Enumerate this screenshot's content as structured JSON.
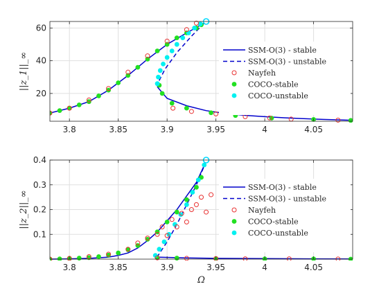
{
  "chart_data": [
    {
      "type": "line",
      "xlabel": "",
      "ylabel": "||z_1||_∞",
      "xlim": [
        3.78,
        4.09
      ],
      "ylim": [
        3,
        64
      ],
      "xticks": [
        3.8,
        3.85,
        3.9,
        3.95,
        4,
        4.05
      ],
      "xtick_labels": [
        "3.8",
        "3.85",
        "3.9",
        "3.95",
        "4",
        "4.05"
      ],
      "yticks": [
        20,
        40,
        60
      ],
      "ytick_labels": [
        "20",
        "40",
        "60"
      ],
      "grid": true,
      "legend_position": "right",
      "legend": [
        "SSM-O(3) - stable",
        "SSM-O(3) - unstable",
        "Nayfeh",
        "COCO-stable",
        "COCO-unstable"
      ],
      "series": [
        {
          "name": "SSM-O(3) - stable",
          "style": "solid",
          "color": "#0000cc",
          "x": [
            3.78,
            3.8,
            3.82,
            3.84,
            3.86,
            3.88,
            3.9,
            3.92,
            3.938
          ],
          "y": [
            8,
            11,
            15,
            22,
            31,
            41,
            50,
            57,
            63
          ]
        },
        {
          "name": "SSM-O(3) - stable",
          "style": "solid",
          "color": "#0000cc",
          "x": [
            3.89,
            3.9,
            3.92,
            3.94,
            3.96,
            3.98,
            4.0,
            4.02,
            4.04,
            4.06,
            4.09
          ],
          "y": [
            24,
            17,
            12.5,
            9.5,
            7.8,
            6.6,
            5.8,
            5.1,
            4.6,
            4.1,
            3.6
          ]
        },
        {
          "name": "SSM-O(3) - unstable",
          "style": "dashed",
          "color": "#0000cc",
          "x": [
            3.938,
            3.925,
            3.91,
            3.898,
            3.892,
            3.89
          ],
          "y": [
            63,
            55,
            45,
            35,
            28,
            24
          ]
        },
        {
          "name": "Nayfeh",
          "marker": "open-circle",
          "color": "#e83030",
          "x": [
            3.78,
            3.8,
            3.82,
            3.84,
            3.86,
            3.88,
            3.9,
            3.92,
            3.93,
            3.906,
            3.925,
            3.95,
            3.98,
            4.005,
            4.027,
            4.075
          ],
          "y": [
            8,
            11,
            16,
            23,
            33,
            43,
            52,
            59,
            63,
            11,
            9,
            7.5,
            5.8,
            5,
            4.3,
            3.7
          ]
        },
        {
          "name": "COCO-stable",
          "marker": "filled-circle",
          "color": "#22e022",
          "x": [
            3.78,
            3.79,
            3.8,
            3.81,
            3.82,
            3.83,
            3.84,
            3.85,
            3.86,
            3.87,
            3.88,
            3.89,
            3.9,
            3.91,
            3.92,
            3.93,
            3.935,
            3.892,
            3.895,
            3.905,
            3.92,
            3.945,
            3.97,
            4.007,
            4.05,
            4.088
          ],
          "y": [
            8,
            9.5,
            11,
            13,
            15,
            18.5,
            22,
            26.5,
            31,
            36,
            41,
            46,
            50,
            54,
            57,
            60,
            62,
            25,
            20,
            14,
            11,
            8.2,
            6.5,
            4.9,
            4.1,
            3.5
          ]
        },
        {
          "name": "COCO-unstable",
          "marker": "filled-circle",
          "color": "#00f0f0",
          "x": [
            3.89,
            3.891,
            3.893,
            3.896,
            3.9,
            3.905,
            3.91,
            3.916,
            3.922,
            3.928,
            3.934,
            3.94
          ],
          "y": [
            26,
            30,
            34,
            38,
            42,
            46,
            50,
            54,
            57,
            60,
            62.5,
            64
          ]
        }
      ],
      "end_marker": {
        "x": 3.94,
        "y": 64,
        "color": "#00d8ff"
      }
    },
    {
      "type": "line",
      "xlabel": "Ω",
      "ylabel": "||z_2||_∞",
      "xlim": [
        3.78,
        4.09
      ],
      "ylim": [
        0,
        0.4
      ],
      "xticks": [
        3.8,
        3.85,
        3.9,
        3.95,
        4,
        4.05
      ],
      "xtick_labels": [
        "3.8",
        "3.85",
        "3.9",
        "3.95",
        "4",
        "4.05"
      ],
      "yticks": [
        0.1,
        0.2,
        0.3,
        0.4
      ],
      "ytick_labels": [
        "0.1",
        "0.2",
        "0.3",
        "0.4"
      ],
      "grid": true,
      "legend_position": "right",
      "legend": [
        "SSM-O(3) - stable",
        "SSM-O(3) - unstable",
        "Nayfeh",
        "COCO-stable",
        "COCO-unstable"
      ],
      "series": [
        {
          "name": "SSM-O(3) - stable",
          "style": "solid",
          "color": "#0000cc",
          "x": [
            3.78,
            3.8,
            3.82,
            3.84,
            3.85,
            3.86,
            3.87,
            3.88,
            3.89,
            3.9,
            3.91,
            3.92,
            3.93,
            3.94
          ],
          "y": [
            0,
            0.001,
            0.003,
            0.008,
            0.015,
            0.025,
            0.045,
            0.075,
            0.11,
            0.155,
            0.2,
            0.255,
            0.31,
            0.395
          ]
        },
        {
          "name": "SSM-O(3) - stable",
          "style": "solid",
          "color": "#0000cc",
          "x": [
            3.89,
            3.92,
            3.95,
            4.0,
            4.05,
            4.09
          ],
          "y": [
            0.008,
            0.005,
            0.003,
            0.002,
            0.001,
            0.0005
          ]
        },
        {
          "name": "SSM-O(3) - unstable",
          "style": "dashed",
          "color": "#0000cc",
          "x": [
            3.94,
            3.93,
            3.92,
            3.91,
            3.9,
            3.89
          ],
          "y": [
            0.395,
            0.3,
            0.22,
            0.14,
            0.07,
            0.01
          ]
        },
        {
          "name": "Nayfeh",
          "marker": "open-circle",
          "color": "#e83030",
          "x": [
            3.78,
            3.8,
            3.82,
            3.84,
            3.86,
            3.87,
            3.88,
            3.89,
            3.895,
            3.9,
            3.905,
            3.91,
            3.915,
            3.92,
            3.925,
            3.93,
            3.935,
            3.94,
            3.945,
            3.89,
            3.92,
            3.95,
            3.98,
            4.025,
            4.075
          ],
          "y": [
            0,
            0.003,
            0.01,
            0.02,
            0.04,
            0.065,
            0.085,
            0.1,
            0.13,
            0.095,
            0.16,
            0.13,
            0.185,
            0.15,
            0.2,
            0.22,
            0.25,
            0.19,
            0.26,
            0.005,
            0.003,
            0.002,
            0.001,
            0.001,
            0.0005
          ]
        },
        {
          "name": "COCO-stable",
          "marker": "filled-circle",
          "color": "#22e022",
          "x": [
            3.78,
            3.79,
            3.8,
            3.81,
            3.82,
            3.83,
            3.84,
            3.85,
            3.86,
            3.87,
            3.88,
            3.89,
            3.9,
            3.91,
            3.92,
            3.93,
            3.935,
            3.89,
            3.91,
            3.95,
            4.0,
            4.05,
            4.088
          ],
          "y": [
            0,
            0.001,
            0.002,
            0.004,
            0.006,
            0.01,
            0.016,
            0.025,
            0.038,
            0.055,
            0.08,
            0.11,
            0.15,
            0.19,
            0.24,
            0.29,
            0.33,
            0.006,
            0.004,
            0.002,
            0.001,
            0.001,
            0
          ]
        },
        {
          "name": "COCO-unstable",
          "marker": "filled-circle",
          "color": "#00f0f0",
          "x": [
            3.888,
            3.892,
            3.897,
            3.902,
            3.908,
            3.914,
            3.92,
            3.926,
            3.932,
            3.938
          ],
          "y": [
            0.015,
            0.04,
            0.07,
            0.1,
            0.14,
            0.18,
            0.22,
            0.27,
            0.32,
            0.38
          ]
        }
      ],
      "end_marker": {
        "x": 3.94,
        "y": 0.4,
        "color": "#00d8ff"
      }
    }
  ]
}
